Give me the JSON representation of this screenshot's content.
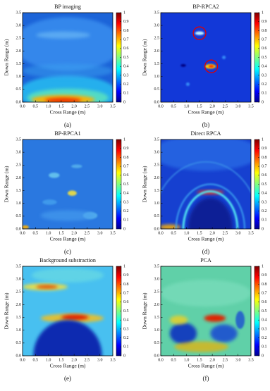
{
  "chart_data": [
    {
      "type": "heatmap",
      "title": "BP imaging",
      "caption": "(a)",
      "xlabel": "Cross Range (m)",
      "ylabel": "Down Range (m)",
      "xlim": [
        0,
        3.5
      ],
      "ylim": [
        0,
        3.5
      ],
      "xticks": [
        {
          "value": 0,
          "label": "0.0"
        },
        {
          "value": 0.5,
          "label": "0.5"
        },
        {
          "value": 1,
          "label": "1.0"
        },
        {
          "value": 1.5,
          "label": "1.5"
        },
        {
          "value": 2,
          "label": "2.0"
        },
        {
          "value": 2.5,
          "label": "2.5"
        },
        {
          "value": 3,
          "label": "3.0"
        },
        {
          "value": 3.5,
          "label": "3.5"
        }
      ],
      "yticks": [
        {
          "value": 0,
          "label": "0.0"
        },
        {
          "value": 0.5,
          "label": "0.5"
        },
        {
          "value": 1,
          "label": "1.0"
        },
        {
          "value": 1.5,
          "label": "1.5"
        },
        {
          "value": 2,
          "label": "2.0"
        },
        {
          "value": 2.5,
          "label": "2.5"
        },
        {
          "value": 3,
          "label": "3.0"
        },
        {
          "value": 3.5,
          "label": "3.5"
        }
      ],
      "clim": [
        0,
        1
      ],
      "cticks": [
        0,
        0.1,
        0.2,
        0.3,
        0.4,
        0.5,
        0.6,
        0.7,
        0.8,
        0.9,
        1
      ]
    },
    {
      "type": "heatmap",
      "title": "BP-RPCA2",
      "caption": "(b)",
      "xlabel": "Cross Range (m)",
      "ylabel": "Down Range (m)",
      "xlim": [
        0,
        3.5
      ],
      "ylim": [
        0,
        3.5
      ],
      "xticks": [
        {
          "value": 0,
          "label": "0.0"
        },
        {
          "value": 0.5,
          "label": "0.5"
        },
        {
          "value": 1,
          "label": "1.0"
        },
        {
          "value": 1.5,
          "label": "1.5"
        },
        {
          "value": 2,
          "label": "2.0"
        },
        {
          "value": 2.5,
          "label": "2.5"
        },
        {
          "value": 3,
          "label": "3.0"
        },
        {
          "value": 3.5,
          "label": "3.5"
        }
      ],
      "yticks": [
        {
          "value": 0,
          "label": "0.0"
        },
        {
          "value": 0.5,
          "label": "0.5"
        },
        {
          "value": 1,
          "label": "1.0"
        },
        {
          "value": 1.5,
          "label": "1.5"
        },
        {
          "value": 2,
          "label": "2.0"
        },
        {
          "value": 2.5,
          "label": "2.5"
        },
        {
          "value": 3,
          "label": "3.0"
        },
        {
          "value": 3.5,
          "label": "3.5"
        }
      ],
      "clim": [
        0,
        1
      ],
      "cticks": [
        0,
        0.1,
        0.2,
        0.3,
        0.4,
        0.5,
        0.6,
        0.7,
        0.8,
        0.9,
        1
      ]
    },
    {
      "type": "heatmap",
      "title": "BP-RPCA1",
      "caption": "(c)",
      "xlabel": "Cross Range (m)",
      "ylabel": "Down Range (m)",
      "xlim": [
        0,
        3.5
      ],
      "ylim": [
        0,
        3.5
      ],
      "xticks": [
        {
          "value": 0,
          "label": "0.0"
        },
        {
          "value": 0.5,
          "label": "0.5"
        },
        {
          "value": 1,
          "label": "1.0"
        },
        {
          "value": 1.5,
          "label": "1.5"
        },
        {
          "value": 2,
          "label": "2.0"
        },
        {
          "value": 2.5,
          "label": "2.5"
        },
        {
          "value": 3,
          "label": "3.0"
        },
        {
          "value": 3.5,
          "label": "3.5"
        }
      ],
      "yticks": [
        {
          "value": 0,
          "label": "0.0"
        },
        {
          "value": 0.5,
          "label": "0.5"
        },
        {
          "value": 1,
          "label": "1.0"
        },
        {
          "value": 1.5,
          "label": "1.5"
        },
        {
          "value": 2,
          "label": "2.0"
        },
        {
          "value": 2.5,
          "label": "2.5"
        },
        {
          "value": 3,
          "label": "3.0"
        },
        {
          "value": 3.5,
          "label": "3.5"
        }
      ],
      "clim": [
        0,
        1
      ],
      "cticks": [
        0,
        0.1,
        0.2,
        0.3,
        0.4,
        0.5,
        0.6,
        0.7,
        0.8,
        0.9,
        1
      ]
    },
    {
      "type": "heatmap",
      "title": "Direct RPCA",
      "caption": "(d)",
      "xlabel": "Cross Range (m)",
      "ylabel": "Down Range (m)",
      "xlim": [
        0,
        3.5
      ],
      "ylim": [
        0,
        3.5
      ],
      "xticks": [
        {
          "value": 0,
          "label": "0.0"
        },
        {
          "value": 0.5,
          "label": "0.5"
        },
        {
          "value": 1,
          "label": "1.0"
        },
        {
          "value": 1.5,
          "label": "1.5"
        },
        {
          "value": 2,
          "label": "2.0"
        },
        {
          "value": 2.5,
          "label": "2.5"
        },
        {
          "value": 3,
          "label": "3.0"
        },
        {
          "value": 3.5,
          "label": "3.5"
        }
      ],
      "yticks": [
        {
          "value": 0,
          "label": "0.0"
        },
        {
          "value": 0.5,
          "label": "0.5"
        },
        {
          "value": 1,
          "label": "1.0"
        },
        {
          "value": 1.5,
          "label": "1.5"
        },
        {
          "value": 2,
          "label": "2.0"
        },
        {
          "value": 2.5,
          "label": "2.5"
        },
        {
          "value": 3,
          "label": "3.0"
        },
        {
          "value": 3.5,
          "label": "3.5"
        }
      ],
      "clim": [
        0,
        1
      ],
      "cticks": [
        0,
        0.1,
        0.2,
        0.3,
        0.4,
        0.5,
        0.6,
        0.7,
        0.8,
        0.9,
        1
      ]
    },
    {
      "type": "heatmap",
      "title": "Background substraction",
      "caption": "(e)",
      "xlabel": "Cross Range (m)",
      "ylabel": "Down Range (m)",
      "xlim": [
        0,
        3.5
      ],
      "ylim": [
        0,
        3.5
      ],
      "xticks": [
        {
          "value": 0,
          "label": "0.0"
        },
        {
          "value": 0.5,
          "label": "0.5"
        },
        {
          "value": 1,
          "label": "1.0"
        },
        {
          "value": 1.5,
          "label": "1.5"
        },
        {
          "value": 2,
          "label": "2.0"
        },
        {
          "value": 2.5,
          "label": "2.5"
        },
        {
          "value": 3,
          "label": "3.0"
        },
        {
          "value": 3.5,
          "label": "3.5"
        }
      ],
      "yticks": [
        {
          "value": 0,
          "label": "0.0"
        },
        {
          "value": 0.5,
          "label": "0.5"
        },
        {
          "value": 1,
          "label": "1.0"
        },
        {
          "value": 1.5,
          "label": "1.5"
        },
        {
          "value": 2,
          "label": "2.0"
        },
        {
          "value": 2.5,
          "label": "2.5"
        },
        {
          "value": 3,
          "label": "3.0"
        },
        {
          "value": 3.5,
          "label": "3.5"
        }
      ],
      "clim": [
        0,
        1
      ],
      "cticks": [
        0,
        0.1,
        0.2,
        0.3,
        0.4,
        0.5,
        0.6,
        0.7,
        0.8,
        0.9,
        1
      ]
    },
    {
      "type": "heatmap",
      "title": "PCA",
      "caption": "(f)",
      "xlabel": "Cross Range (m)",
      "ylabel": "Down Range (m)",
      "xlim": [
        0,
        3.5
      ],
      "ylim": [
        0,
        3.5
      ],
      "xticks": [
        {
          "value": 0,
          "label": "0.0"
        },
        {
          "value": 0.5,
          "label": "0.5"
        },
        {
          "value": 1,
          "label": "1.0"
        },
        {
          "value": 1.5,
          "label": "1.5"
        },
        {
          "value": 2,
          "label": "2.0"
        },
        {
          "value": 2.5,
          "label": "2.5"
        },
        {
          "value": 3,
          "label": "3.0"
        },
        {
          "value": 3.5,
          "label": "3.5"
        }
      ],
      "yticks": [
        {
          "value": 0,
          "label": "0.0"
        },
        {
          "value": 0.5,
          "label": "0.5"
        },
        {
          "value": 1,
          "label": "1.0"
        },
        {
          "value": 1.5,
          "label": "1.5"
        },
        {
          "value": 2,
          "label": "2.0"
        },
        {
          "value": 2.5,
          "label": "2.5"
        },
        {
          "value": 3,
          "label": "3.0"
        },
        {
          "value": 3.5,
          "label": "3.5"
        }
      ],
      "clim": [
        0,
        1
      ],
      "cticks": [
        0,
        0.1,
        0.2,
        0.3,
        0.4,
        0.5,
        0.6,
        0.7,
        0.8,
        0.9,
        1
      ]
    }
  ]
}
